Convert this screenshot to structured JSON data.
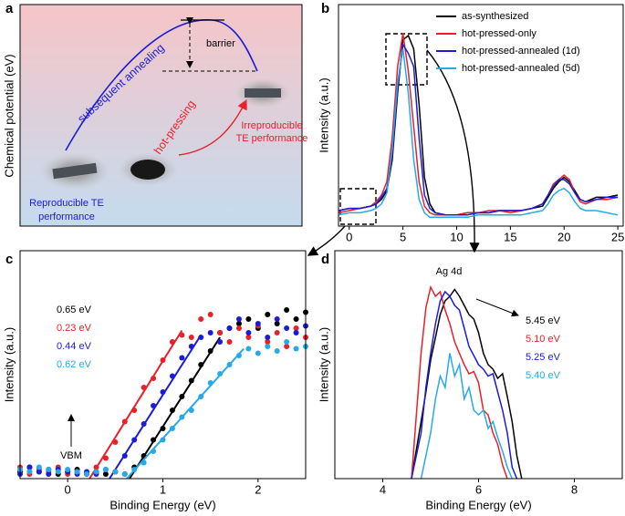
{
  "diagram": {
    "panel_label": "a",
    "y_label": "Chemical potential (eV)",
    "barrier": "barrier",
    "annealing": "subsequent annealing",
    "hot_pressing": "hot-pressing",
    "irreproducible": [
      "Irreproducible",
      "TE performance"
    ],
    "reproducible": [
      "Reproducible TE",
      "performance"
    ]
  },
  "chart_data": [
    {
      "type": "line",
      "panel_label": "b",
      "y_label": "Intensity (a.u.)",
      "legend": "upper right",
      "legend_style": "line",
      "xlim": [
        -1,
        25.5
      ],
      "xticks": [
        0,
        5,
        10,
        15,
        20,
        25
      ],
      "ylim": [
        0,
        1
      ],
      "x": [
        -1,
        0,
        1,
        2,
        2.5,
        3,
        3.5,
        4,
        4.5,
        5,
        5.5,
        6,
        6.5,
        7,
        7.5,
        8,
        9,
        10,
        11,
        12,
        13,
        14,
        15,
        16,
        17,
        18,
        18.5,
        19,
        19.5,
        20,
        20.5,
        21,
        21.5,
        22,
        23,
        24,
        25
      ],
      "series": [
        {
          "name": "as-synthesized",
          "color": "#000000",
          "values": [
            0.07,
            0.08,
            0.08,
            0.09,
            0.1,
            0.12,
            0.16,
            0.3,
            0.6,
            0.84,
            0.86,
            0.8,
            0.55,
            0.22,
            0.1,
            0.06,
            0.05,
            0.05,
            0.06,
            0.06,
            0.06,
            0.07,
            0.07,
            0.07,
            0.08,
            0.09,
            0.13,
            0.17,
            0.2,
            0.22,
            0.2,
            0.16,
            0.12,
            0.11,
            0.13,
            0.13,
            0.14
          ]
        },
        {
          "name": "hot-pressed-only",
          "color": "#e8202a",
          "values": [
            0.06,
            0.07,
            0.08,
            0.09,
            0.11,
            0.14,
            0.2,
            0.4,
            0.72,
            0.87,
            0.7,
            0.45,
            0.2,
            0.09,
            0.06,
            0.05,
            0.05,
            0.05,
            0.06,
            0.06,
            0.07,
            0.07,
            0.06,
            0.07,
            0.08,
            0.1,
            0.14,
            0.19,
            0.21,
            0.23,
            0.21,
            0.15,
            0.11,
            0.1,
            0.12,
            0.12,
            0.13
          ]
        },
        {
          "name": "hot-pressed-annealed (1d)",
          "color": "#1c1cd8",
          "values": [
            0.07,
            0.08,
            0.08,
            0.09,
            0.1,
            0.13,
            0.17,
            0.32,
            0.62,
            0.82,
            0.78,
            0.72,
            0.4,
            0.14,
            0.08,
            0.06,
            0.05,
            0.05,
            0.05,
            0.06,
            0.06,
            0.07,
            0.07,
            0.07,
            0.08,
            0.1,
            0.14,
            0.18,
            0.21,
            0.21,
            0.19,
            0.15,
            0.12,
            0.11,
            0.12,
            0.13,
            0.13
          ]
        },
        {
          "name": "hot-pressed-annealed (5d)",
          "color": "#26a9e8",
          "values": [
            0.05,
            0.06,
            0.06,
            0.07,
            0.08,
            0.1,
            0.15,
            0.35,
            0.65,
            0.8,
            0.6,
            0.3,
            0.12,
            0.06,
            0.04,
            0.04,
            0.04,
            0.04,
            0.04,
            0.05,
            0.05,
            0.05,
            0.05,
            0.05,
            0.06,
            0.07,
            0.1,
            0.14,
            0.16,
            0.17,
            0.15,
            0.11,
            0.08,
            0.07,
            0.07,
            0.06,
            0.05
          ]
        }
      ]
    },
    {
      "type": "scatter",
      "panel_label": "c",
      "y_label": "Intensity (a.u.)",
      "x_label": "Binding Energy (eV)",
      "legend": "upper left",
      "legend_style": "text",
      "annotation": "VBM",
      "xlim": [
        -0.5,
        2.5
      ],
      "xticks": [
        0,
        1,
        2
      ],
      "ylim": [
        0,
        1
      ],
      "x": [
        -0.5,
        -0.4,
        -0.3,
        -0.2,
        -0.1,
        0,
        0.1,
        0.2,
        0.3,
        0.4,
        0.5,
        0.6,
        0.7,
        0.8,
        0.9,
        1.0,
        1.1,
        1.2,
        1.3,
        1.4,
        1.5,
        1.6,
        1.7,
        1.8,
        1.9,
        2.0,
        2.1,
        2.2,
        2.3,
        2.4,
        2.5
      ],
      "series": [
        {
          "name": "0.65 eV",
          "color": "#000000",
          "values": [
            0.03,
            0.05,
            0.03,
            0.04,
            0.02,
            0.03,
            0.04,
            0.02,
            0.03,
            0.02,
            0.03,
            0.02,
            0.05,
            0.1,
            0.17,
            0.22,
            0.3,
            0.36,
            0.43,
            0.5,
            0.56,
            0.64,
            0.66,
            0.68,
            0.7,
            0.66,
            0.72,
            0.68,
            0.74,
            0.7,
            0.73
          ],
          "fit": {
            "x": [
              0.65,
              1.6
            ],
            "values": [
              0,
              0.62
            ]
          }
        },
        {
          "name": "0.23 eV",
          "color": "#e8202a",
          "values": [
            0.05,
            0.02,
            0.04,
            0.03,
            0.05,
            0.02,
            0.03,
            0.02,
            0.05,
            0.09,
            0.16,
            0.25,
            0.3,
            0.4,
            0.44,
            0.52,
            0.6,
            0.63,
            0.62,
            0.7,
            0.72,
            0.64,
            0.6,
            0.66,
            0.62,
            0.67,
            0.6,
            0.64,
            0.58,
            0.66,
            0.62
          ],
          "fit": {
            "x": [
              0.23,
              1.2
            ],
            "values": [
              0,
              0.65
            ]
          }
        },
        {
          "name": "0.44 eV",
          "color": "#1c1cd8",
          "values": [
            0.02,
            0.05,
            0.03,
            0.02,
            0.04,
            0.03,
            0.02,
            0.03,
            0.02,
            0.04,
            0.03,
            0.1,
            0.17,
            0.24,
            0.32,
            0.38,
            0.45,
            0.53,
            0.58,
            0.62,
            0.64,
            0.6,
            0.66,
            0.7,
            0.64,
            0.68,
            0.62,
            0.7,
            0.66,
            0.64,
            0.67
          ],
          "fit": {
            "x": [
              0.44,
              1.4
            ],
            "values": [
              0,
              0.63
            ]
          }
        },
        {
          "name": "0.62 eV",
          "color": "#26a9e8",
          "values": [
            0.04,
            0.03,
            0.05,
            0.04,
            0.03,
            0.04,
            0.03,
            0.02,
            0.03,
            0.04,
            0.03,
            0.02,
            0.04,
            0.07,
            0.12,
            0.17,
            0.22,
            0.27,
            0.3,
            0.36,
            0.42,
            0.46,
            0.5,
            0.54,
            0.57,
            0.55,
            0.58,
            0.56,
            0.6,
            0.57,
            0.58
          ],
          "fit": {
            "x": [
              0.62,
              1.85
            ],
            "values": [
              0,
              0.57
            ]
          }
        }
      ]
    },
    {
      "type": "line",
      "panel_label": "d",
      "y_label": "Intensity (a.u.)",
      "x_label": "Binding Energy (eV)",
      "legend": "upper right",
      "legend_style": "text",
      "annotation": "Ag 4d",
      "xlim": [
        3,
        9
      ],
      "xticks": [
        4,
        6,
        8
      ],
      "ylim": [
        0,
        1
      ],
      "x": [
        4.4,
        4.6,
        4.8,
        4.9,
        5.0,
        5.1,
        5.2,
        5.3,
        5.4,
        5.5,
        5.6,
        5.7,
        5.8,
        5.9,
        6.0,
        6.1,
        6.2,
        6.3,
        6.4,
        6.5,
        6.6,
        6.7,
        6.8,
        6.9,
        7.0
      ],
      "series": [
        {
          "name": "5.45 eV",
          "color": "#000000",
          "values": [
            null,
            0,
            0.25,
            0.38,
            0.52,
            0.62,
            0.72,
            0.78,
            0.8,
            0.83,
            0.8,
            0.76,
            0.72,
            0.7,
            0.64,
            0.55,
            0.5,
            0.48,
            0.44,
            0.46,
            0.36,
            0.25,
            0.1,
            0,
            null
          ]
        },
        {
          "name": "5.10 eV",
          "color": "#e8202a",
          "values": [
            null,
            0,
            0.55,
            0.75,
            0.84,
            0.8,
            0.82,
            0.74,
            0.68,
            0.6,
            0.55,
            0.5,
            0.46,
            0.47,
            0.42,
            0.3,
            0.28,
            0.2,
            0.15,
            0.06,
            0,
            null,
            null,
            null,
            null
          ]
        },
        {
          "name": "5.25 eV",
          "color": "#1c1cd8",
          "values": [
            null,
            0,
            0.2,
            0.4,
            0.55,
            0.68,
            0.78,
            0.82,
            0.8,
            0.76,
            0.74,
            0.66,
            0.58,
            0.54,
            0.5,
            0.48,
            0.45,
            0.46,
            0.38,
            0.3,
            0.2,
            0.05,
            0,
            null,
            null
          ]
        },
        {
          "name": "5.40 eV",
          "color": "#26a9e8",
          "values": [
            null,
            null,
            0,
            0.1,
            0.2,
            0.35,
            0.45,
            0.4,
            0.55,
            0.45,
            0.5,
            0.35,
            0.4,
            0.3,
            0.28,
            0.3,
            0.22,
            0.25,
            0.18,
            0.12,
            0.05,
            0,
            null,
            null,
            null
          ]
        }
      ]
    }
  ]
}
